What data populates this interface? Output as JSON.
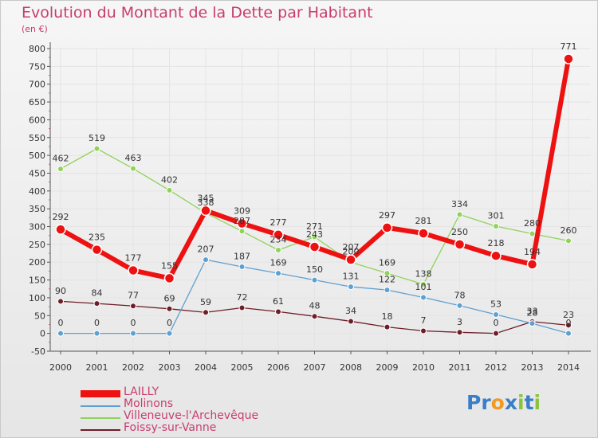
{
  "colors": {
    "title": "#c83c6e",
    "axis": "#555555",
    "grid": "#e4e4e4",
    "tickmark": "#e06080"
  },
  "brand": {
    "text": "Proxiti",
    "letters": [
      "P",
      "r",
      "o",
      "x",
      "i",
      "t",
      "i"
    ],
    "letter_colors": [
      "#3a7ec8",
      "#3a7ec8",
      "#f29a1f",
      "#3a7ec8",
      "#8ac43f",
      "#3a7ec8",
      "#8ac43f"
    ]
  },
  "chart_data": {
    "type": "line",
    "title": "Evolution du Montant de la Dette par Habitant",
    "unit_label": "(en €)",
    "x": [
      "2000",
      "2001",
      "2002",
      "2003",
      "2004",
      "2005",
      "2006",
      "2007",
      "2008",
      "2009",
      "2010",
      "2011",
      "2012",
      "2013",
      "2014"
    ],
    "ylim": [
      -50,
      800
    ],
    "yticks": [
      -50,
      0,
      50,
      100,
      150,
      200,
      250,
      300,
      350,
      400,
      450,
      500,
      550,
      600,
      650,
      700,
      750,
      800
    ],
    "legend_position": "bottom-left",
    "series": [
      {
        "name": "Foissy-sur-Vanne",
        "color": "#6e1e28",
        "line_width": 1.3,
        "marker_radius": 3.5,
        "values": [
          90,
          84,
          77,
          69,
          59,
          72,
          61,
          48,
          34,
          18,
          7,
          3,
          0,
          33,
          23
        ]
      },
      {
        "name": "Molinons",
        "color": "#5ea0d2",
        "line_width": 1.3,
        "marker_radius": 3.5,
        "values": [
          0,
          0,
          0,
          0,
          207,
          187,
          169,
          150,
          131,
          122,
          101,
          78,
          53,
          28,
          0
        ]
      },
      {
        "name": "Villeneuve-l'Archevêque",
        "color": "#90d25a",
        "line_width": 1.3,
        "marker_radius": 3.5,
        "values": [
          462,
          519,
          463,
          402,
          338,
          287,
          234,
          271,
          200,
          169,
          138,
          334,
          301,
          280,
          260
        ]
      },
      {
        "name": "LAILLY",
        "color": "#ee1111",
        "line_width": 6,
        "marker_radius": 6,
        "values": [
          292,
          235,
          177,
          155,
          345,
          309,
          277,
          243,
          207,
          297,
          281,
          250,
          218,
          194,
          771
        ]
      }
    ],
    "legend_order": [
      "LAILLY",
      "Molinons",
      "Villeneuve-l'Archevêque",
      "Foissy-sur-Vanne"
    ]
  }
}
